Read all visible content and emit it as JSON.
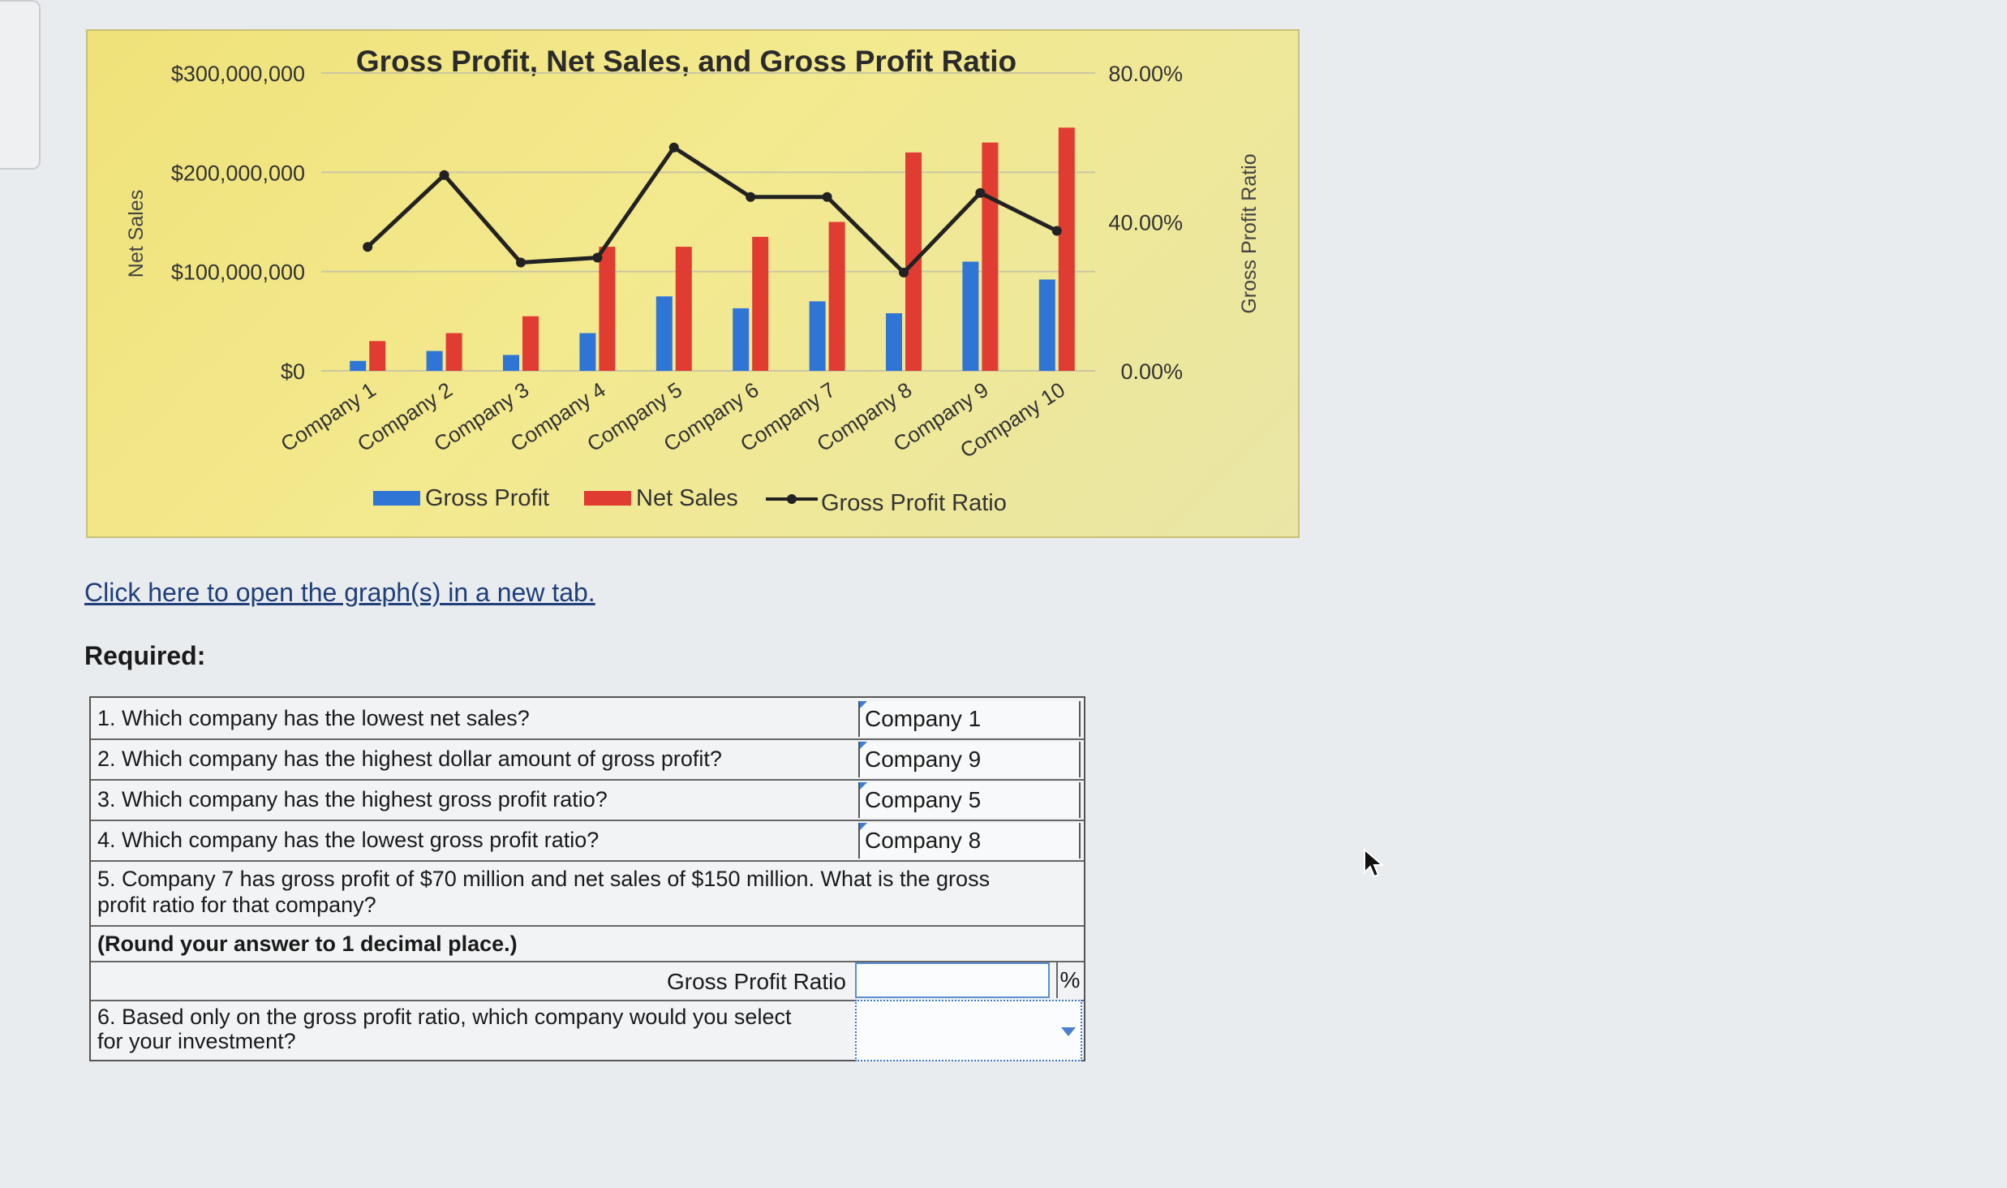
{
  "chart_data": {
    "type": "bar+line",
    "title": "Gross Profit, Net Sales, and Gross Profit Ratio",
    "categories": [
      "Company 1",
      "Company 2",
      "Company 3",
      "Company 4",
      "Company 5",
      "Company 6",
      "Company 7",
      "Company 8",
      "Company 9",
      "Company 10"
    ],
    "series": [
      {
        "name": "Gross Profit",
        "type": "bar",
        "axis": "left",
        "color": "#2e75d6",
        "values": [
          10000000,
          20000000,
          16000000,
          38000000,
          75000000,
          63000000,
          70000000,
          58000000,
          110000000,
          92000000
        ]
      },
      {
        "name": "Net Sales",
        "type": "bar",
        "axis": "left",
        "color": "#e03c31",
        "values": [
          30000000,
          38000000,
          55000000,
          125000000,
          125000000,
          135000000,
          150000000,
          220000000,
          230000000,
          245000000
        ]
      },
      {
        "name": "Gross Profit Ratio",
        "type": "line",
        "axis": "right",
        "color": "#222222",
        "values": [
          33.3,
          52.6,
          29.1,
          30.4,
          60.0,
          46.7,
          46.7,
          26.4,
          47.8,
          37.6
        ]
      }
    ],
    "ylabel": "Net Sales",
    "y2label": "Gross Profit Ratio",
    "yticks": [
      "$0",
      "$100,000,000",
      "$200,000,000",
      "$300,000,000"
    ],
    "ylim": [
      0,
      300000000
    ],
    "y2ticks": [
      "0.00%",
      "40.00%",
      "80.00%"
    ],
    "y2lim": [
      0,
      80
    ],
    "grid": true,
    "legend_position": "bottom"
  },
  "link_text": "Click here to open the graph(s) in a new tab.",
  "required_label": "Required:",
  "questions": [
    {
      "text": "1. Which company has the lowest net sales?",
      "answer": "Company 1"
    },
    {
      "text": "2. Which company has the highest dollar amount of gross profit?",
      "answer": "Company 9"
    },
    {
      "text": "3. Which company has the highest gross profit ratio?",
      "answer": "Company 5"
    },
    {
      "text": "4. Which company has the lowest gross profit ratio?",
      "answer": "Company 8"
    }
  ],
  "q5": {
    "line1": "5. Company 7 has gross profit of $70 million and net sales of $150 million. What is the gross",
    "line2": "profit ratio for that company?",
    "round_note": "(Round your answer to 1 decimal place.)",
    "input_label": "Gross Profit Ratio",
    "input_value": "",
    "unit": "%"
  },
  "q6": {
    "line1": "6. Based only on the gross profit ratio, which company would you select",
    "line2": "for your investment?",
    "selected_value": ""
  }
}
